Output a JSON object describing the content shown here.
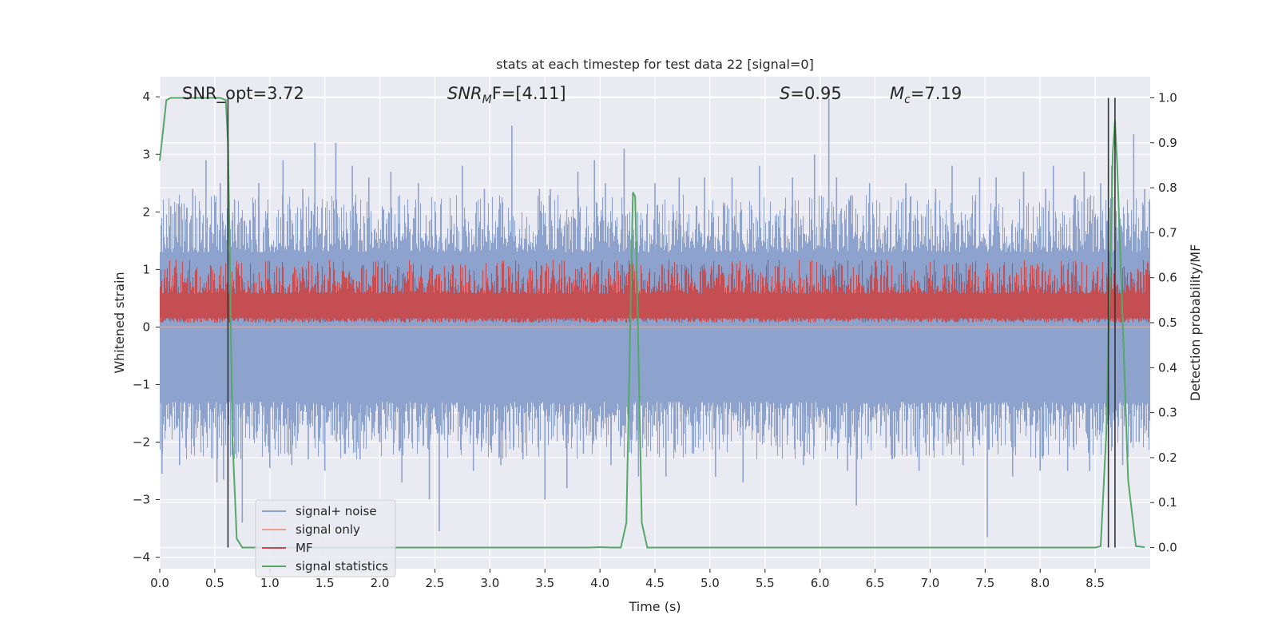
{
  "chart_data": {
    "type": "line",
    "title": "stats at each timestep for test data 22 [signal=0]",
    "xlabel": "Time (s)",
    "ylabel": "Whitened strain",
    "y2label": "Detection probability/MF",
    "xlim": [
      0,
      9
    ],
    "ylim": [
      -4.2,
      4.35
    ],
    "y2lim": [
      -0.047,
      1.047
    ],
    "x_ticks": [
      "0.0",
      "0.5",
      "1.0",
      "1.5",
      "2.0",
      "2.5",
      "3.0",
      "3.5",
      "4.0",
      "4.5",
      "5.0",
      "5.5",
      "6.0",
      "6.5",
      "7.0",
      "7.5",
      "8.0",
      "8.5"
    ],
    "y_ticks": [
      "4",
      "3",
      "2",
      "1",
      "0",
      "−1",
      "−2",
      "−3",
      "−4"
    ],
    "y2_ticks": [
      "1.0",
      "0.9",
      "0.8",
      "0.7",
      "0.6",
      "0.5",
      "0.4",
      "0.3",
      "0.2",
      "0.1",
      "0.0"
    ],
    "annotations": {
      "snr_opt": "SNR_opt=3.72",
      "snr_mf_main": "SNR",
      "snr_mf_sub": "M",
      "snr_mf_rest": "F=[4.11]",
      "s_main": "S",
      "s_rest": "=0.95",
      "mc_main": "M",
      "mc_sub": "c",
      "mc_rest": "=7.19"
    },
    "legend": {
      "placement": "lower-left",
      "entries": [
        "signal+ noise",
        "signal only",
        "MF",
        "signal statistics"
      ]
    },
    "grid": true,
    "series": [
      {
        "name": "signal+ noise",
        "axis": "left",
        "color": "#8da2cc",
        "style": "dense noise band",
        "band_lower": -1.3,
        "band_upper": 1.3,
        "typical_max": 2.3,
        "typical_min": -2.3,
        "spikes": [
          [
            0.02,
            -2.55
          ],
          [
            0.1,
            2.1
          ],
          [
            0.18,
            -2.4
          ],
          [
            0.3,
            2.4
          ],
          [
            0.42,
            2.9
          ],
          [
            0.52,
            -2.7
          ],
          [
            0.55,
            2.5
          ],
          [
            0.58,
            -2.65
          ],
          [
            0.68,
            2.2
          ],
          [
            0.75,
            -3.4
          ],
          [
            0.9,
            2.5
          ],
          [
            1.0,
            -2.45
          ],
          [
            1.12,
            2.9
          ],
          [
            1.2,
            -2.4
          ],
          [
            1.3,
            2.4
          ],
          [
            1.35,
            -2.3
          ],
          [
            1.41,
            3.2
          ],
          [
            1.5,
            -2.5
          ],
          [
            1.6,
            3.2
          ],
          [
            1.68,
            -2.2
          ],
          [
            1.75,
            2.8
          ],
          [
            1.82,
            -2.3
          ],
          [
            1.9,
            2.6
          ],
          [
            2.0,
            -2.0
          ],
          [
            2.1,
            2.7
          ],
          [
            2.2,
            -2.7
          ],
          [
            2.35,
            2.5
          ],
          [
            2.45,
            -3.0
          ],
          [
            2.54,
            -3.55
          ],
          [
            2.75,
            2.8
          ],
          [
            2.85,
            -2.5
          ],
          [
            2.95,
            2.4
          ],
          [
            3.1,
            -2.4
          ],
          [
            3.2,
            3.5
          ],
          [
            3.3,
            -2.3
          ],
          [
            3.45,
            2.4
          ],
          [
            3.5,
            -3.0
          ],
          [
            3.55,
            2.4
          ],
          [
            3.7,
            -2.8
          ],
          [
            3.8,
            2.7
          ],
          [
            3.85,
            -2.2
          ],
          [
            3.95,
            2.9
          ],
          [
            4.05,
            2.5
          ],
          [
            4.1,
            -2.4
          ],
          [
            4.22,
            3.1
          ],
          [
            4.35,
            -2.6
          ],
          [
            4.5,
            2.5
          ],
          [
            4.6,
            -2.6
          ],
          [
            4.72,
            2.6
          ],
          [
            4.85,
            -2.2
          ],
          [
            4.95,
            2.6
          ],
          [
            5.05,
            -2.6
          ],
          [
            5.2,
            2.6
          ],
          [
            5.3,
            -2.7
          ],
          [
            5.45,
            2.8
          ],
          [
            5.6,
            -2.0
          ],
          [
            5.75,
            2.6
          ],
          [
            5.85,
            -2.4
          ],
          [
            5.95,
            3.0
          ],
          [
            6.08,
            3.97
          ],
          [
            6.15,
            2.6
          ],
          [
            6.25,
            -2.5
          ],
          [
            6.33,
            -3.1
          ],
          [
            6.45,
            2.5
          ],
          [
            6.6,
            -2.1
          ],
          [
            6.78,
            2.5
          ],
          [
            6.9,
            -2.5
          ],
          [
            7.05,
            2.4
          ],
          [
            7.2,
            2.8
          ],
          [
            7.3,
            -2.4
          ],
          [
            7.45,
            2.6
          ],
          [
            7.52,
            -3.65
          ],
          [
            7.6,
            2.6
          ],
          [
            7.75,
            -2.6
          ],
          [
            7.85,
            2.7
          ],
          [
            8.0,
            -2.5
          ],
          [
            8.05,
            2.4
          ],
          [
            8.12,
            2.8
          ],
          [
            8.25,
            -2.5
          ],
          [
            8.4,
            2.7
          ],
          [
            8.45,
            -2.5
          ],
          [
            8.55,
            2.5
          ],
          [
            8.65,
            2.8
          ],
          [
            8.75,
            -2.4
          ],
          [
            8.85,
            3.35
          ],
          [
            8.9,
            -2.0
          ],
          [
            8.95,
            2.4
          ]
        ]
      },
      {
        "name": "signal only",
        "axis": "left",
        "color": "#e8a08a",
        "style": "flat line",
        "value": 0.0
      },
      {
        "name": "MF",
        "axis": "right",
        "color": "#c44e52",
        "style": "dense noise band",
        "band_lower": 0.5,
        "band_upper": 0.6,
        "max": 0.64,
        "min": 0.5
      },
      {
        "name": "signal statistics",
        "axis": "right",
        "color": "#55a868",
        "x": [
          0.0,
          0.06,
          0.1,
          0.15,
          0.2,
          0.3,
          0.4,
          0.5,
          0.55,
          0.6,
          0.62,
          0.64,
          0.66,
          0.7,
          0.75,
          0.8,
          1.0,
          2.0,
          3.0,
          3.5,
          3.9,
          4.0,
          4.1,
          4.19,
          4.24,
          4.28,
          4.3,
          4.32,
          4.34,
          4.38,
          4.43,
          4.5,
          5.0,
          6.0,
          7.0,
          8.0,
          8.4,
          8.5,
          8.55,
          8.6,
          8.64,
          8.66,
          8.68,
          8.7,
          8.75,
          8.8,
          8.87,
          8.95
        ],
        "y": [
          0.86,
          0.995,
          1.0,
          1.0,
          1.0,
          1.0,
          1.0,
          1.0,
          1.0,
          0.995,
          0.9,
          0.6,
          0.25,
          0.02,
          0.0,
          0.0,
          0.0,
          0.0,
          0.0,
          0.0,
          0.0,
          0.001,
          0.0,
          0.0,
          0.055,
          0.55,
          0.79,
          0.78,
          0.55,
          0.055,
          0.0,
          0.0,
          0.0,
          0.0,
          0.0,
          0.0,
          0.0,
          0.0,
          0.003,
          0.25,
          0.65,
          0.88,
          0.95,
          0.85,
          0.5,
          0.15,
          0.003,
          0.001
        ]
      }
    ],
    "vertical_lines": {
      "color": "#333333",
      "y_from": 0.0,
      "y_to": 1.0,
      "x": [
        0.62,
        8.62,
        8.68
      ]
    }
  }
}
